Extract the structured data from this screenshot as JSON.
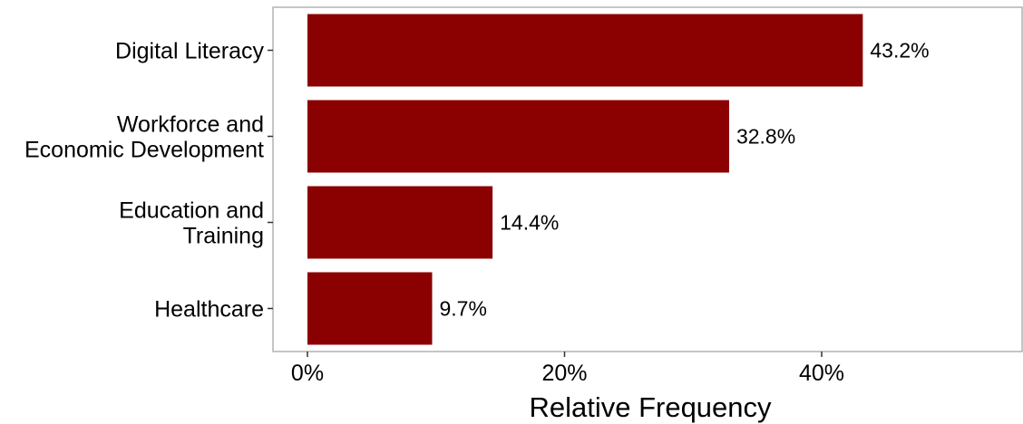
{
  "chart_data": {
    "type": "bar",
    "orientation": "horizontal",
    "categories": [
      [
        "Digital Literacy"
      ],
      [
        "Workforce and",
        "Economic Development"
      ],
      [
        "Education and",
        "Training"
      ],
      [
        "Healthcare"
      ]
    ],
    "values": [
      43.2,
      32.8,
      14.4,
      9.7
    ],
    "value_labels": [
      "43.2%",
      "32.8%",
      "14.4%",
      "9.7%"
    ],
    "xlabel": "Relative Frequency",
    "ylabel": "",
    "xlim": [
      0,
      53
    ],
    "xticks": [
      0,
      20,
      40
    ],
    "xtick_labels": [
      "0%",
      "20%",
      "40%"
    ],
    "grid": false,
    "legend": "none",
    "bar_color": "#8b0000",
    "panel_border_color": "#b3b3b3"
  }
}
